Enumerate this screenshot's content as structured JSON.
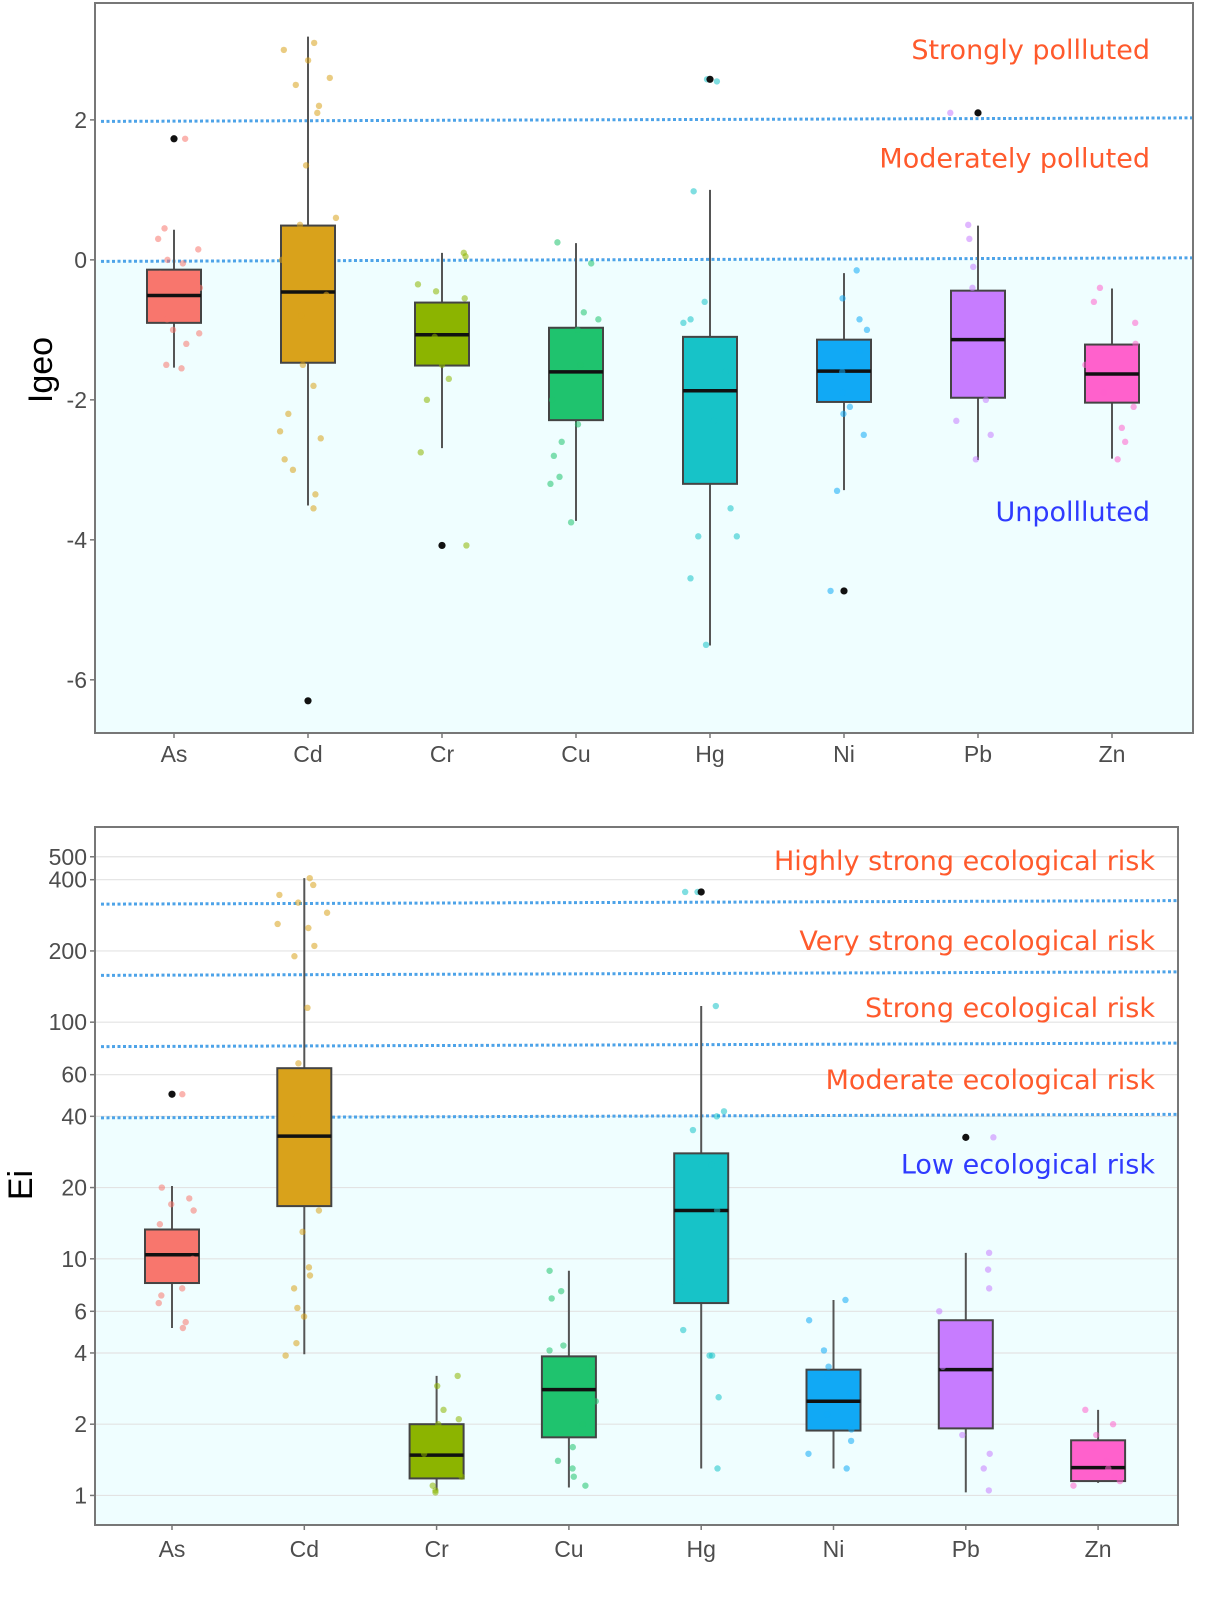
{
  "colors": {
    "As": "#F8766D",
    "Cd": "#D9A21B",
    "Cr": "#8CB400",
    "Cu": "#1FC36E",
    "Hg": "#17C3C8",
    "Ni": "#11A9F5",
    "Pb": "#C77CFF",
    "Zn": "#FF61CC",
    "threshold_line": "#4DA3E8",
    "shade": "#EFFEFF",
    "annotation_warn": "#FF5A2C",
    "annotation_safe": "#2F3BFF",
    "outlier": "#111111"
  },
  "chart_data": [
    {
      "type": "box",
      "ylabel": "Igeo",
      "xlabel": "",
      "scale": "linear",
      "ylim": [
        -6.76,
        3.67
      ],
      "yticks": [
        2,
        0,
        -2,
        -4,
        -6
      ],
      "ytick_labels": [
        "2",
        "0",
        "-2",
        "-4",
        "-6"
      ],
      "grid": false,
      "shaded_below": 0,
      "thresholds": [
        0,
        2
      ],
      "annotations": [
        {
          "text": "Strongly pollluted",
          "at": 3.0,
          "kind": "warn"
        },
        {
          "text": "Moderately polluted",
          "at": 1.45,
          "kind": "warn"
        },
        {
          "text": "Unpollluted",
          "at": -3.6,
          "kind": "safe"
        }
      ],
      "categories": [
        "As",
        "Cd",
        "Cr",
        "Cu",
        "Hg",
        "Ni",
        "Pb",
        "Zn"
      ],
      "boxes": [
        {
          "name": "As",
          "whisker_low": -1.54,
          "q1": -0.9,
          "median": -0.51,
          "q3": -0.14,
          "whisker_high": 0.43,
          "outliers": [
            1.73
          ],
          "points": [
            0.45,
            0.3,
            0.15,
            0.0,
            -0.05,
            -0.2,
            -0.4,
            -0.6,
            -0.85,
            -1.0,
            -1.05,
            -1.2,
            -1.5,
            -1.55,
            1.73
          ]
        },
        {
          "name": "Cd",
          "whisker_low": -3.51,
          "q1": -1.47,
          "median": -0.46,
          "q3": 0.49,
          "whisker_high": 3.19,
          "outliers": [
            -6.3
          ],
          "points": [
            3.1,
            3.0,
            2.85,
            2.6,
            2.5,
            2.2,
            2.1,
            1.35,
            0.6,
            0.5,
            0.0,
            -0.5,
            -0.8,
            -1.5,
            -1.8,
            -2.2,
            -2.45,
            -2.55,
            -2.85,
            -3.0,
            -3.35,
            -3.55
          ]
        },
        {
          "name": "Cr",
          "whisker_low": -2.69,
          "q1": -1.51,
          "median": -1.07,
          "q3": -0.61,
          "whisker_high": 0.1,
          "outliers": [
            -4.08
          ],
          "points": [
            0.1,
            0.05,
            -0.35,
            -0.45,
            -0.55,
            -0.8,
            -1.1,
            -1.5,
            -1.7,
            -2.0,
            -2.75,
            -4.08
          ]
        },
        {
          "name": "Cu",
          "whisker_low": -3.73,
          "q1": -2.29,
          "median": -1.6,
          "q3": -0.97,
          "whisker_high": 0.24,
          "outliers": [],
          "points": [
            0.25,
            -0.05,
            -0.75,
            -0.85,
            -1.0,
            -1.5,
            -2.0,
            -2.35,
            -2.6,
            -2.8,
            -3.1,
            -3.2,
            -3.75
          ]
        },
        {
          "name": "Hg",
          "whisker_low": -5.51,
          "q1": -3.2,
          "median": -1.87,
          "q3": -1.1,
          "whisker_high": 1.0,
          "outliers": [
            2.58
          ],
          "points": [
            2.58,
            2.55,
            0.98,
            -0.6,
            -0.85,
            -0.9,
            -1.6,
            -2.3,
            -3.55,
            -3.95,
            -3.95,
            -4.55,
            -5.5
          ]
        },
        {
          "name": "Ni",
          "whisker_low": -3.29,
          "q1": -2.03,
          "median": -1.59,
          "q3": -1.14,
          "whisker_high": -0.19,
          "outliers": [
            -4.73
          ],
          "points": [
            -0.15,
            -0.55,
            -0.85,
            -1.0,
            -1.3,
            -1.6,
            -1.9,
            -2.1,
            -2.2,
            -2.5,
            -3.3,
            -4.73
          ]
        },
        {
          "name": "Pb",
          "whisker_low": -2.86,
          "q1": -1.97,
          "median": -1.14,
          "q3": -0.44,
          "whisker_high": 0.49,
          "outliers": [
            2.1
          ],
          "points": [
            2.1,
            0.5,
            0.3,
            -0.1,
            -0.4,
            -0.9,
            -1.5,
            -2.0,
            -2.3,
            -2.5,
            -2.85
          ]
        },
        {
          "name": "Zn",
          "whisker_low": -2.84,
          "q1": -2.04,
          "median": -1.63,
          "q3": -1.21,
          "whisker_high": -0.41,
          "outliers": [],
          "points": [
            -0.4,
            -0.6,
            -0.9,
            -1.2,
            -1.5,
            -1.9,
            -2.1,
            -2.4,
            -2.6,
            -2.85
          ]
        }
      ]
    },
    {
      "type": "box",
      "ylabel": "Ei",
      "xlabel": "",
      "scale": "log10",
      "ylim": [
        0.75,
        668
      ],
      "yticks": [
        1,
        2,
        4,
        6,
        10,
        20,
        40,
        60,
        100,
        200,
        400,
        500
      ],
      "ytick_labels": [
        "1",
        "2",
        "4",
        "6",
        "10",
        "20",
        "40",
        "60",
        "100",
        "200",
        "400",
        "500"
      ],
      "grid": true,
      "shaded_below": 40,
      "thresholds": [
        40,
        80,
        160,
        320
      ],
      "annotations": [
        {
          "text": "Highly strong ecological risk",
          "at": 480,
          "kind": "warn"
        },
        {
          "text": "Very strong ecological risk",
          "at": 220,
          "kind": "warn"
        },
        {
          "text": "Strong ecological risk",
          "at": 115,
          "kind": "warn"
        },
        {
          "text": "Moderate ecological risk",
          "at": 57,
          "kind": "warn"
        },
        {
          "text": "Low ecological risk",
          "at": 25,
          "kind": "safe"
        }
      ],
      "categories": [
        "As",
        "Cd",
        "Cr",
        "Cu",
        "Hg",
        "Ni",
        "Pb",
        "Zn"
      ],
      "boxes": [
        {
          "name": "As",
          "whisker_low": 5.1,
          "q1": 7.9,
          "median": 10.4,
          "q3": 13.3,
          "whisker_high": 20.3,
          "outliers": [
            49.6
          ],
          "points": [
            20,
            18,
            17,
            16,
            14,
            12,
            10,
            9,
            8.5,
            7.5,
            7,
            6.5,
            5.4,
            5.1,
            49.6
          ]
        },
        {
          "name": "Cd",
          "whisker_low": 3.95,
          "q1": 16.7,
          "median": 33,
          "q3": 63.9,
          "whisker_high": 406,
          "outliers": [],
          "points": [
            406,
            380,
            345,
            320,
            290,
            260,
            250,
            210,
            190,
            115,
            67,
            40,
            16,
            13,
            9.2,
            8.5,
            7.5,
            6.2,
            5.7,
            4.4,
            3.9
          ]
        },
        {
          "name": "Cr",
          "whisker_low": 1.05,
          "q1": 1.18,
          "median": 1.48,
          "q3": 2.0,
          "whisker_high": 3.2,
          "outliers": [],
          "points": [
            3.2,
            2.9,
            2.3,
            2.1,
            2.0,
            1.8,
            1.5,
            1.3,
            1.2,
            1.1,
            1.05,
            1.03
          ]
        },
        {
          "name": "Cu",
          "whisker_low": 1.08,
          "q1": 1.76,
          "median": 2.8,
          "q3": 3.87,
          "whisker_high": 8.9,
          "outliers": [],
          "points": [
            8.9,
            7.3,
            6.8,
            4.3,
            4.1,
            3.5,
            2.5,
            2.0,
            1.6,
            1.4,
            1.3,
            1.2,
            1.1
          ]
        },
        {
          "name": "Hg",
          "whisker_low": 1.3,
          "q1": 6.5,
          "median": 16,
          "q3": 27.9,
          "whisker_high": 117,
          "outliers": [
            355
          ],
          "points": [
            355,
            355,
            117,
            42,
            40,
            35,
            25,
            16,
            8,
            5,
            3.9,
            3.9,
            2.6,
            1.3
          ]
        },
        {
          "name": "Ni",
          "whisker_low": 1.3,
          "q1": 1.88,
          "median": 2.5,
          "q3": 3.4,
          "whisker_high": 6.7,
          "outliers": [],
          "points": [
            6.7,
            5.5,
            4.1,
            3.5,
            3.2,
            2.7,
            2.2,
            1.9,
            1.7,
            1.5,
            1.3
          ]
        },
        {
          "name": "Pb",
          "whisker_low": 1.03,
          "q1": 1.92,
          "median": 3.4,
          "q3": 5.5,
          "whisker_high": 10.6,
          "outliers": [
            32.6
          ],
          "points": [
            32.6,
            10.6,
            9,
            7.5,
            6,
            4.5,
            3.5,
            2.5,
            1.8,
            1.5,
            1.3,
            1.05
          ]
        },
        {
          "name": "Zn",
          "whisker_low": 1.13,
          "q1": 1.15,
          "median": 1.31,
          "q3": 1.71,
          "whisker_high": 2.3,
          "outliers": [],
          "points": [
            2.3,
            2.0,
            1.8,
            1.6,
            1.4,
            1.3,
            1.2,
            1.15,
            1.1
          ]
        }
      ]
    }
  ]
}
